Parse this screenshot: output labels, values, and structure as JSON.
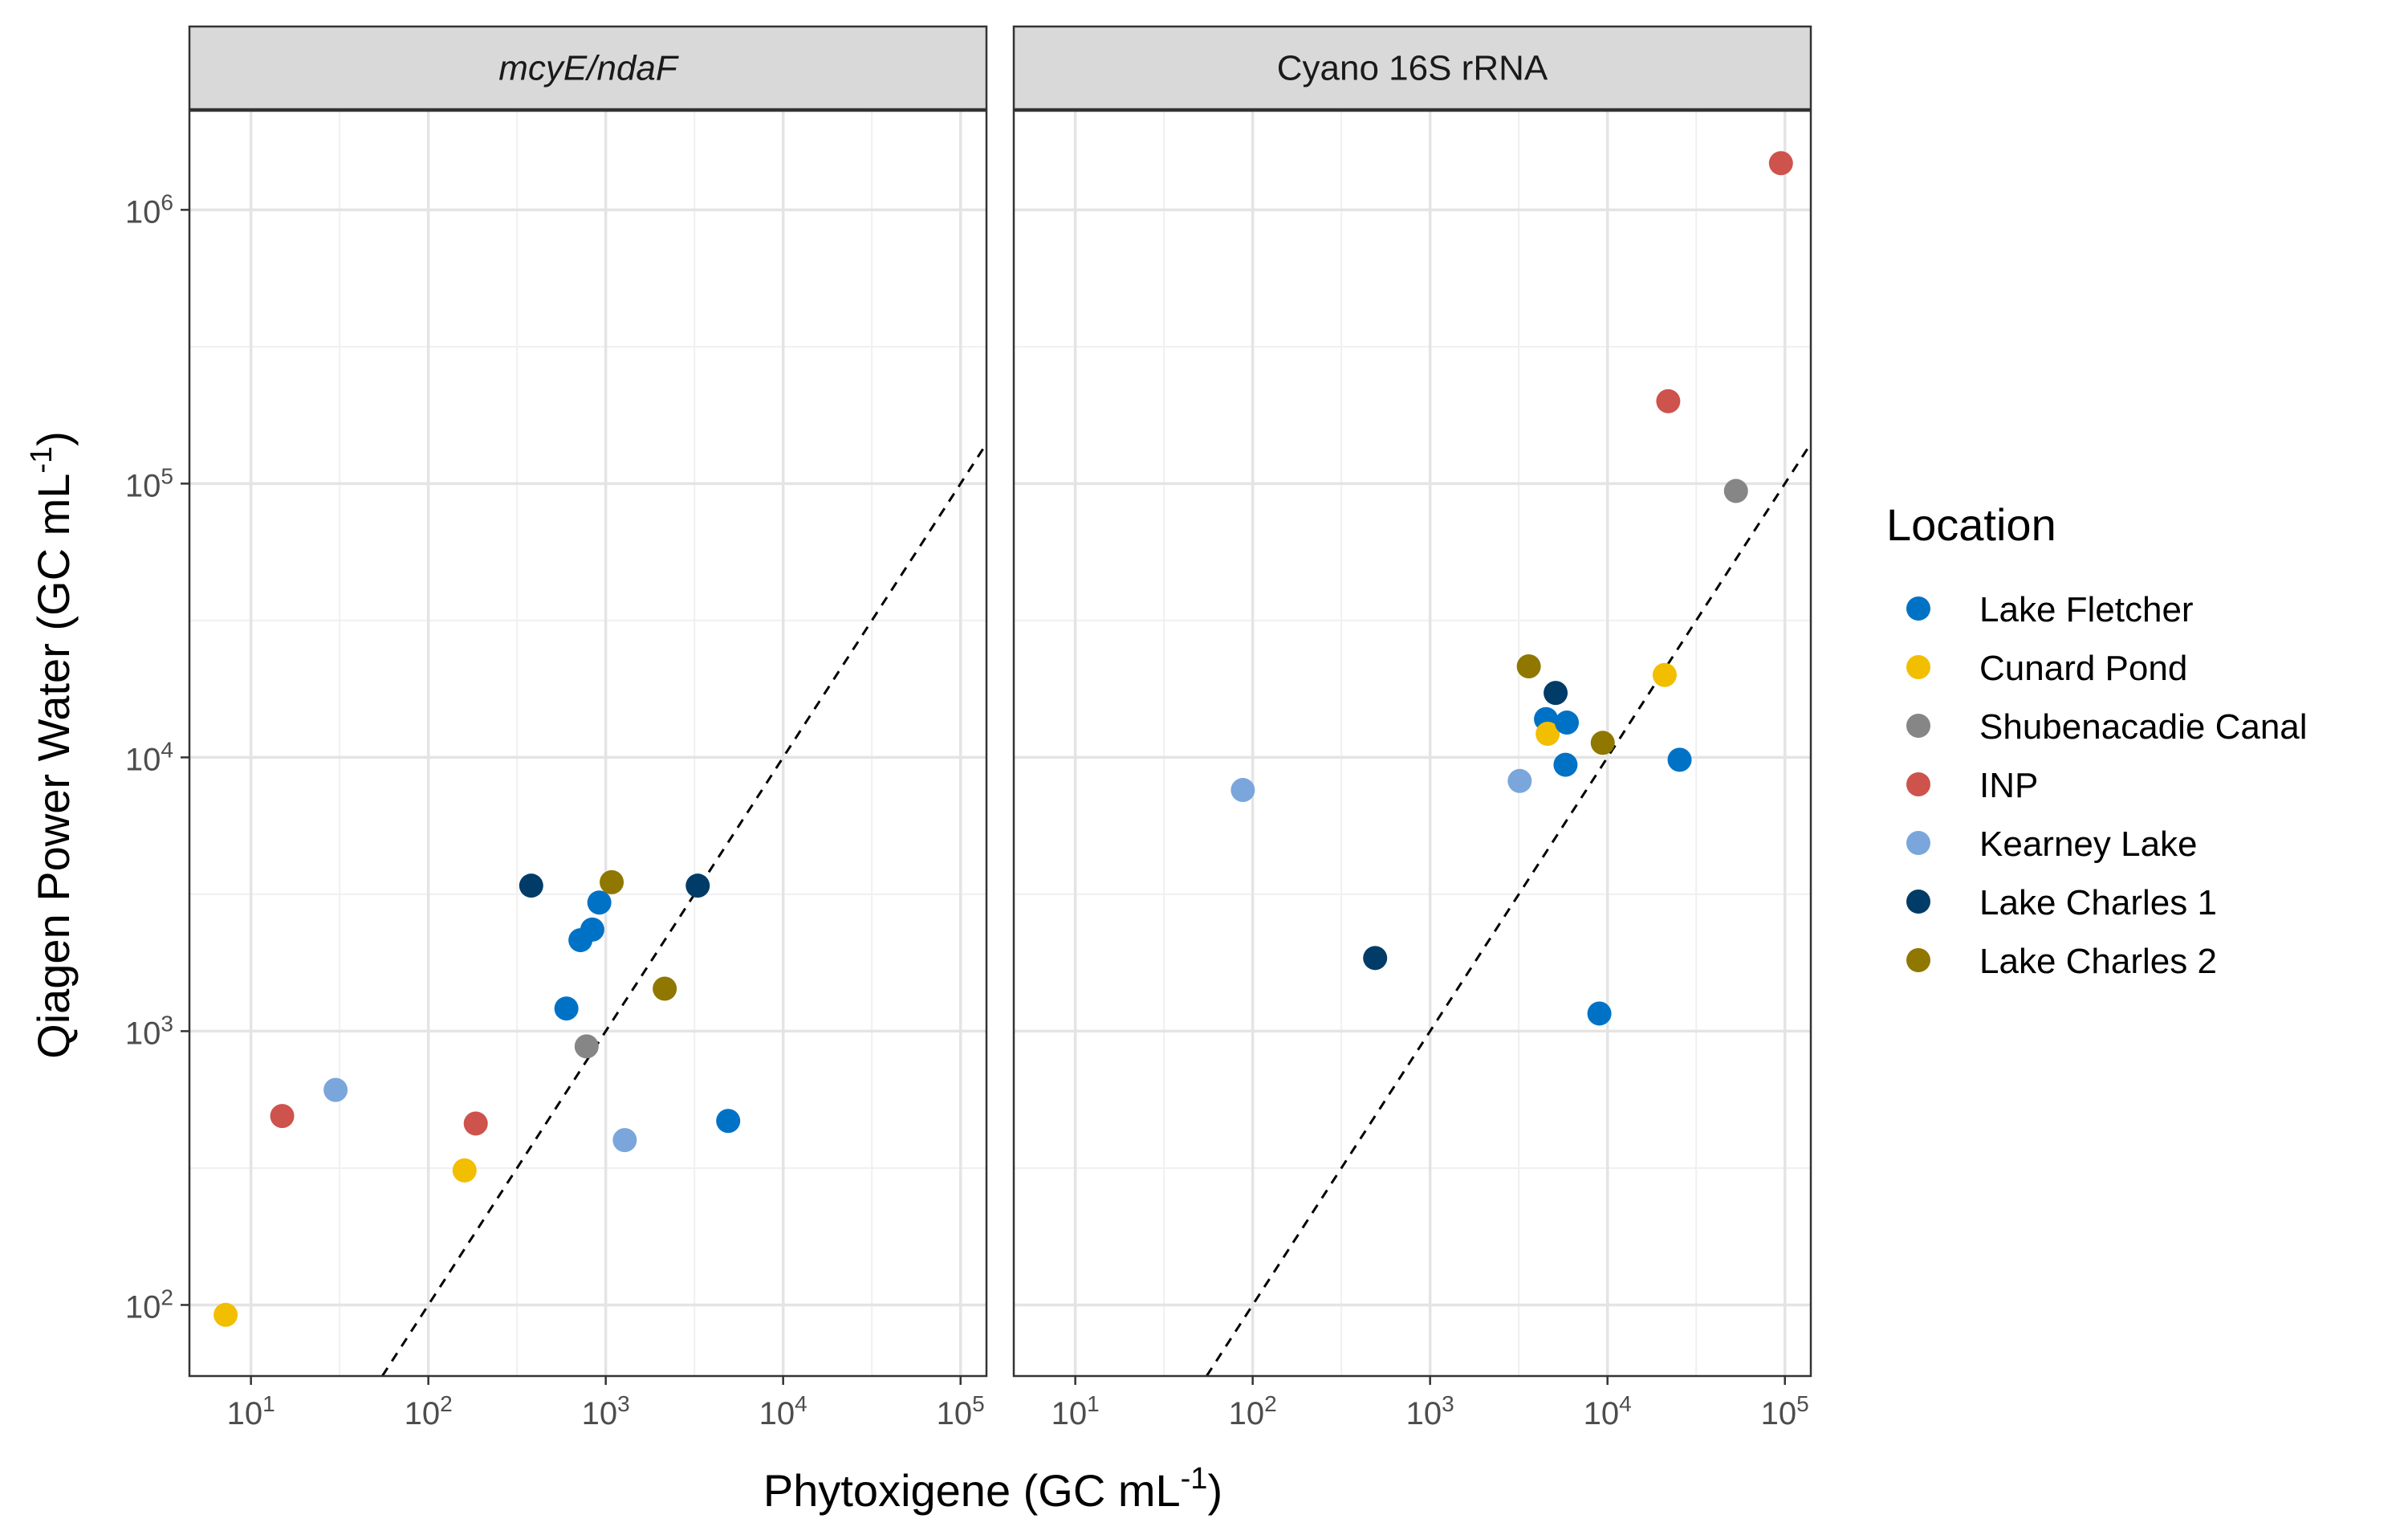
{
  "chart_data": {
    "type": "scatter",
    "xlabel": "Phytoxigene (GC mL",
    "xlabel_sup": "-1",
    "xlabel_end": ")",
    "ylabel": "Qiagen Power Water (GC mL",
    "ylabel_sup": "-1",
    "ylabel_end": ")",
    "x_scale": "log10",
    "y_scale": "log10",
    "xlim": [
      4.5,
      140000
    ],
    "ylim": [
      55,
      2300000
    ],
    "grid": true,
    "reference_line": "y = x (dashed)",
    "legend": {
      "title": "Location",
      "position": "right",
      "entries": [
        {
          "name": "Lake Fletcher",
          "color": "#0072C6"
        },
        {
          "name": "Cunard Pond",
          "color": "#F2BE00"
        },
        {
          "name": "Shubenacadie Canal",
          "color": "#868686"
        },
        {
          "name": "INP",
          "color": "#CD534C"
        },
        {
          "name": "Kearney Lake",
          "color": "#7AA6DC"
        },
        {
          "name": "Lake Charles 1",
          "color": "#003C67"
        },
        {
          "name": "Lake Charles 2",
          "color": "#8F7700"
        }
      ]
    },
    "tick_labels": [
      {
        "base": "10",
        "exp": "1",
        "value": 10
      },
      {
        "base": "10",
        "exp": "2",
        "value": 100
      },
      {
        "base": "10",
        "exp": "3",
        "value": 1000
      },
      {
        "base": "10",
        "exp": "4",
        "value": 10000
      },
      {
        "base": "10",
        "exp": "5",
        "value": 100000
      },
      {
        "base": "10",
        "exp": "6",
        "value": 1000000
      }
    ],
    "panels": [
      {
        "strip": "mcyE/ndaF",
        "italic": true,
        "points": [
          {
            "location": "Cunard Pond",
            "x": 7.2,
            "y": 92
          },
          {
            "location": "INP",
            "x": 15,
            "y": 490
          },
          {
            "location": "Kearney Lake",
            "x": 30,
            "y": 610
          },
          {
            "location": "Cunard Pond",
            "x": 160,
            "y": 310
          },
          {
            "location": "INP",
            "x": 185,
            "y": 460
          },
          {
            "location": "Lake Charles 1",
            "x": 380,
            "y": 3400
          },
          {
            "location": "Lake Fletcher",
            "x": 600,
            "y": 1210
          },
          {
            "location": "Lake Fletcher",
            "x": 720,
            "y": 2150
          },
          {
            "location": "Shubenacadie Canal",
            "x": 780,
            "y": 880
          },
          {
            "location": "Lake Fletcher",
            "x": 840,
            "y": 2350
          },
          {
            "location": "Lake Fletcher",
            "x": 920,
            "y": 2950
          },
          {
            "location": "Lake Charles 2",
            "x": 1080,
            "y": 3500
          },
          {
            "location": "Kearney Lake",
            "x": 1280,
            "y": 400
          },
          {
            "location": "Lake Charles 2",
            "x": 2150,
            "y": 1430
          },
          {
            "location": "Lake Charles 1",
            "x": 3300,
            "y": 3400
          },
          {
            "location": "Lake Fletcher",
            "x": 4900,
            "y": 470
          }
        ]
      },
      {
        "strip": "Cyano 16S rRNA",
        "italic": false,
        "points": [
          {
            "location": "Kearney Lake",
            "x": 88,
            "y": 7600
          },
          {
            "location": "Lake Charles 1",
            "x": 490,
            "y": 1850
          },
          {
            "location": "Kearney Lake",
            "x": 3200,
            "y": 8200
          },
          {
            "location": "Lake Charles 2",
            "x": 3600,
            "y": 21500
          },
          {
            "location": "Lake Fletcher",
            "x": 4500,
            "y": 13800
          },
          {
            "location": "Cunard Pond",
            "x": 4600,
            "y": 12200
          },
          {
            "location": "Lake Charles 1",
            "x": 5100,
            "y": 17200
          },
          {
            "location": "Lake Fletcher",
            "x": 5800,
            "y": 9400
          },
          {
            "location": "Lake Fletcher",
            "x": 5900,
            "y": 13400
          },
          {
            "location": "Lake Fletcher",
            "x": 9000,
            "y": 1160
          },
          {
            "location": "Lake Charles 2",
            "x": 9400,
            "y": 11300
          },
          {
            "location": "Cunard Pond",
            "x": 21000,
            "y": 20000
          },
          {
            "location": "INP",
            "x": 22000,
            "y": 200000
          },
          {
            "location": "Lake Fletcher",
            "x": 25500,
            "y": 9800
          },
          {
            "location": "Shubenacadie Canal",
            "x": 53000,
            "y": 94000
          },
          {
            "location": "INP",
            "x": 95000,
            "y": 1480000
          }
        ]
      }
    ]
  }
}
